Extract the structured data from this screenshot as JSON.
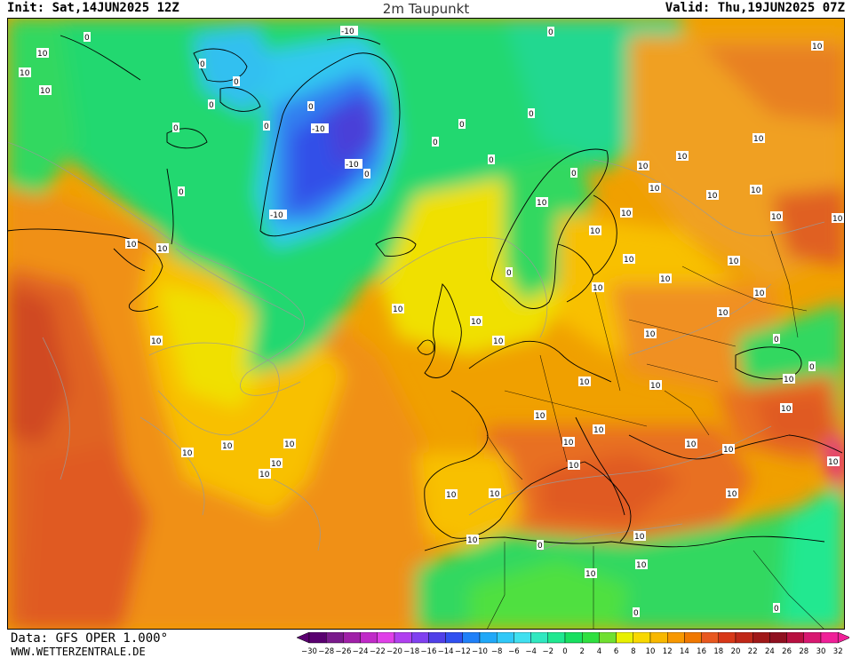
{
  "header": {
    "init": "Init: Sat,14JUN2025 12Z",
    "title": "2m Taupunkt",
    "valid": "Valid: Thu,19JUN2025 07Z"
  },
  "footer": {
    "data_source": "Data: GFS OPER 1.000°",
    "site": "WWW.WETTERZENTRALE.DE"
  },
  "legend": {
    "ticks": [
      "-30",
      "-28",
      "-26",
      "-24",
      "-22",
      "-20",
      "-18",
      "-16",
      "-14",
      "-12",
      "-10",
      "-8",
      "-6",
      "-4",
      "-2",
      "0",
      "2",
      "4",
      "6",
      "8",
      "10",
      "12",
      "14",
      "16",
      "18",
      "20",
      "22",
      "24",
      "26",
      "28",
      "30",
      "32"
    ],
    "colors": [
      "#5a0070",
      "#7a1a8c",
      "#a020a8",
      "#c02ac8",
      "#e040e8",
      "#b040f0",
      "#8040f0",
      "#5040e8",
      "#3050f0",
      "#2080f8",
      "#20a8f8",
      "#30c8f8",
      "#40e0f0",
      "#30e8c0",
      "#20e890",
      "#18e060",
      "#30e040",
      "#70e030",
      "#e8f000",
      "#f8d800",
      "#f8b800",
      "#f89800",
      "#f07800",
      "#e85820",
      "#d83818",
      "#c02818",
      "#a01818",
      "#901020",
      "#b81040",
      "#d81870",
      "#f02098"
    ]
  },
  "contour_labels": [
    "10",
    "0",
    "-10"
  ],
  "map_layers": [
    "dewpoint-field",
    "contour-lines",
    "coastlines",
    "country-borders",
    "contour-labels"
  ]
}
